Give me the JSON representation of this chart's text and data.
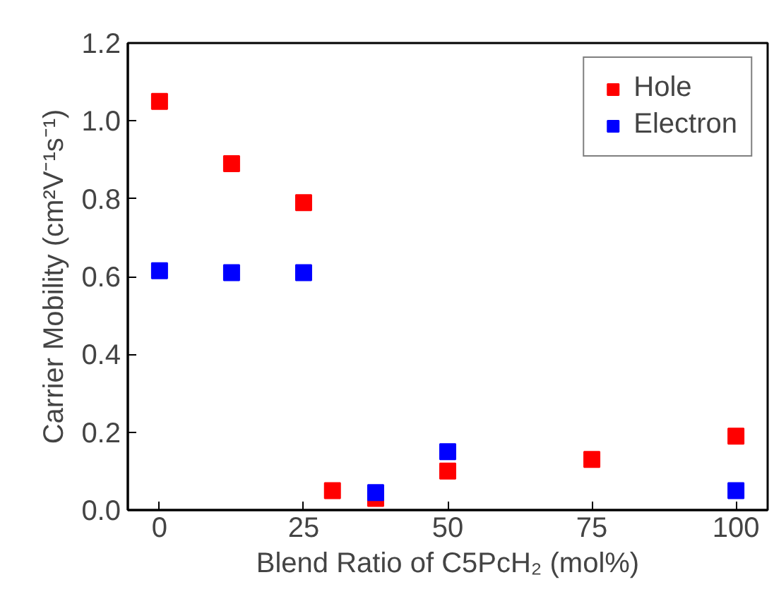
{
  "chart_data": {
    "type": "scatter",
    "xlabel": "Blend Ratio of C5PcH₂ (mol%)",
    "ylabel": "Carrier Mobility (cm²V⁻¹s⁻¹)",
    "xlim": [
      -5.5,
      105.5
    ],
    "xticks": [
      0,
      25,
      50,
      75,
      100
    ],
    "ylim": [
      0,
      1.2
    ],
    "yticks": [
      {
        "value": 0,
        "label": "0.0"
      },
      0.2,
      0.4,
      0.6,
      0.8,
      {
        "value": 1,
        "label": "1.0"
      },
      1.2
    ],
    "series": [
      {
        "name": "Hole",
        "color": "#ff0000",
        "x": [
          0,
          12.5,
          25,
          30,
          37.5,
          50,
          75,
          100
        ],
        "values": [
          1.05,
          0.89,
          0.79,
          0.05,
          0.03,
          0.1,
          0.13,
          0.19
        ]
      },
      {
        "name": "Electron",
        "color": "#0000ff",
        "x": [
          0,
          12.5,
          25,
          37.5,
          50,
          100
        ],
        "values": [
          0.615,
          0.61,
          0.61,
          0.045,
          0.15,
          0.05
        ]
      }
    ],
    "marker": "square",
    "legend": "top right",
    "grid": false
  }
}
